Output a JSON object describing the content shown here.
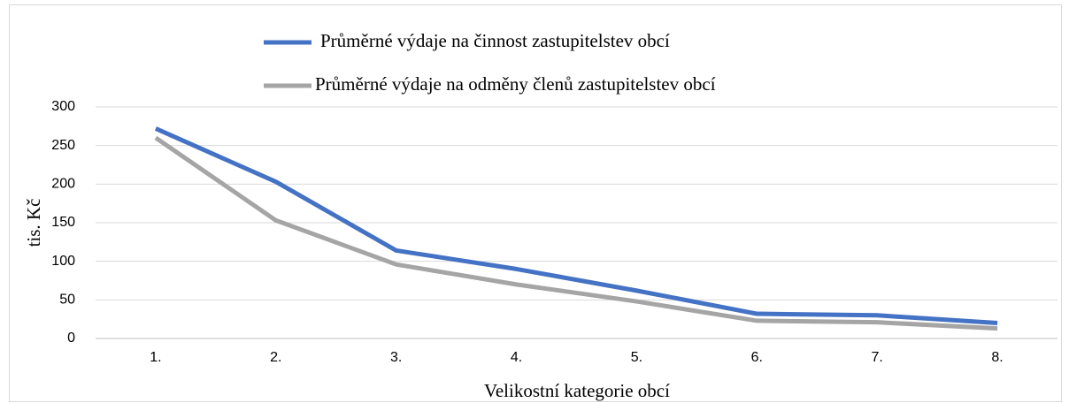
{
  "chart_data": {
    "type": "line",
    "x_label": "Velikostní kategorie obcí",
    "y_label": "tis. Kč",
    "categories": [
      "1.",
      "2.",
      "3.",
      "4.",
      "5.",
      "6.",
      "7.",
      "8."
    ],
    "series": [
      {
        "name": "Průměrné výdaje na činnost zastupitelstev obcí",
        "color": "#4472c4",
        "values": [
          272,
          203,
          114,
          90,
          62,
          32,
          30,
          20
        ]
      },
      {
        "name": "Průměrné výdaje na odměny členů zastupitelstev obcí",
        "color": "#a5a5a5",
        "values": [
          260,
          153,
          96,
          70,
          48,
          23,
          21,
          13
        ]
      }
    ],
    "ylim": [
      0,
      300
    ],
    "yticks": [
      0,
      50,
      100,
      150,
      200,
      250,
      300
    ],
    "grid": true,
    "legend": "top"
  }
}
